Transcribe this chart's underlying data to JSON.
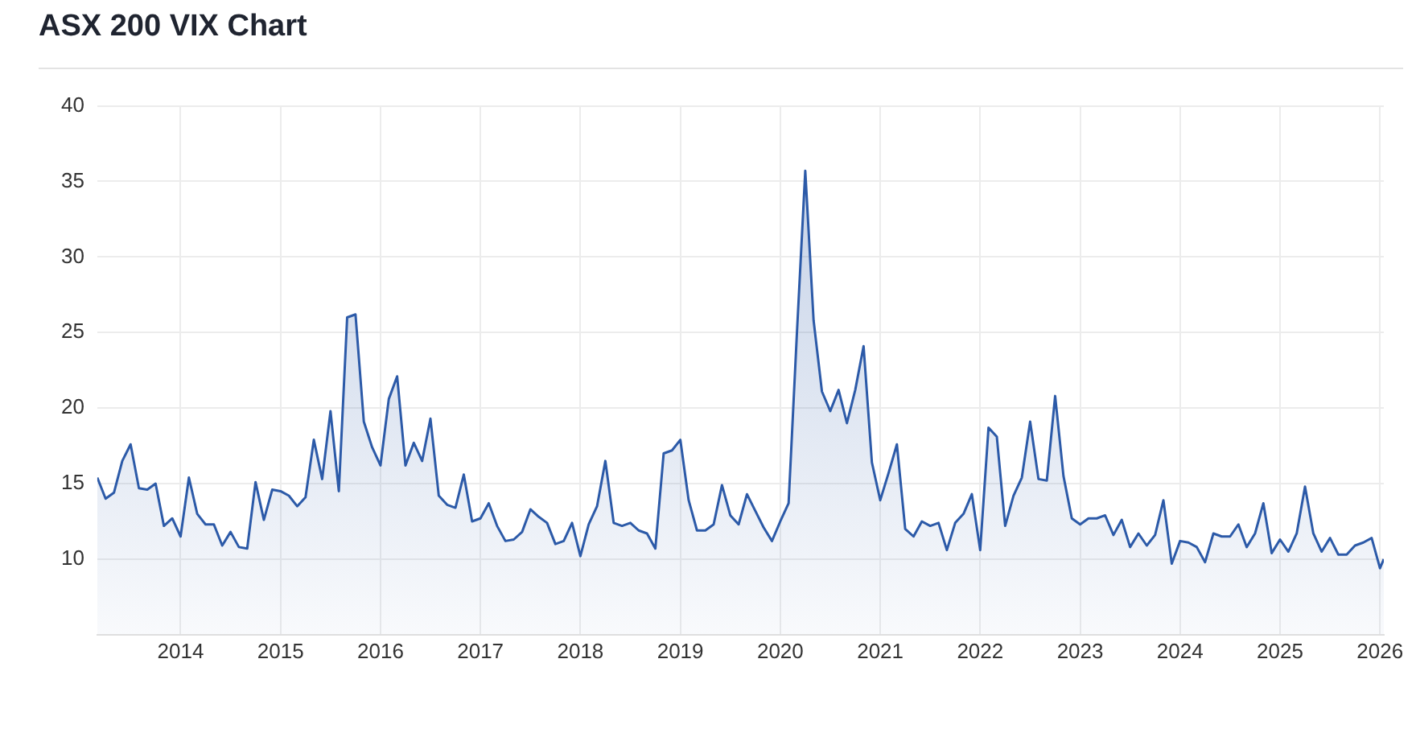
{
  "chart_data": {
    "type": "area",
    "title": "ASX 200 VIX Chart",
    "x": [
      "2013-03",
      "2013-04",
      "2013-05",
      "2013-06",
      "2013-07",
      "2013-08",
      "2013-09",
      "2013-10",
      "2013-11",
      "2013-12",
      "2014-01",
      "2014-02",
      "2014-03",
      "2014-04",
      "2014-05",
      "2014-06",
      "2014-07",
      "2014-08",
      "2014-09",
      "2014-10",
      "2014-11",
      "2014-12",
      "2015-01",
      "2015-02",
      "2015-03",
      "2015-04",
      "2015-05",
      "2015-06",
      "2015-07",
      "2015-08",
      "2015-09",
      "2015-10",
      "2015-11",
      "2015-12",
      "2016-01",
      "2016-02",
      "2016-03",
      "2016-04",
      "2016-05",
      "2016-06",
      "2016-07",
      "2016-08",
      "2016-09",
      "2016-10",
      "2016-11",
      "2016-12",
      "2017-01",
      "2017-02",
      "2017-03",
      "2017-04",
      "2017-05",
      "2017-06",
      "2017-07",
      "2017-08",
      "2017-09",
      "2017-10",
      "2017-11",
      "2017-12",
      "2018-01",
      "2018-02",
      "2018-03",
      "2018-04",
      "2018-05",
      "2018-06",
      "2018-07",
      "2018-08",
      "2018-09",
      "2018-10",
      "2018-11",
      "2018-12",
      "2019-01",
      "2019-02",
      "2019-03",
      "2019-04",
      "2019-05",
      "2019-06",
      "2019-07",
      "2019-08",
      "2019-09",
      "2019-10",
      "2019-11",
      "2019-12",
      "2020-01",
      "2020-02",
      "2020-03",
      "2020-04",
      "2020-05",
      "2020-06",
      "2020-07",
      "2020-08",
      "2020-09",
      "2020-10",
      "2020-11",
      "2020-12",
      "2021-01",
      "2021-02",
      "2021-03",
      "2021-04",
      "2021-05",
      "2021-06",
      "2021-07",
      "2021-08",
      "2021-09",
      "2021-10",
      "2021-11",
      "2021-12",
      "2022-01",
      "2022-02",
      "2022-03",
      "2022-04",
      "2022-05",
      "2022-06",
      "2022-07",
      "2022-08",
      "2022-09",
      "2022-10",
      "2022-11",
      "2022-12",
      "2023-01",
      "2023-02",
      "2023-03",
      "2023-04",
      "2023-05",
      "2023-06",
      "2023-07",
      "2023-08",
      "2023-09",
      "2023-10",
      "2023-11",
      "2023-12",
      "2024-01",
      "2024-02",
      "2024-03",
      "2024-04",
      "2024-05",
      "2024-06",
      "2024-07",
      "2024-08",
      "2024-09",
      "2024-10",
      "2024-11",
      "2024-12",
      "2025-01",
      "2025-02",
      "2025-03",
      "2025-04",
      "2025-05",
      "2025-06",
      "2025-07",
      "2025-08",
      "2025-09",
      "2025-10",
      "2025-11",
      "2025-12",
      "2026-01",
      "2026-01-15"
    ],
    "series": [
      {
        "color": "#2c5aa8",
        "values": [
          15.4,
          14.0,
          14.4,
          16.5,
          17.6,
          14.7,
          14.6,
          15.0,
          12.2,
          12.7,
          11.5,
          15.4,
          13.0,
          12.3,
          12.3,
          10.9,
          11.8,
          10.8,
          10.7,
          15.1,
          12.6,
          14.6,
          14.5,
          14.2,
          13.5,
          14.1,
          17.9,
          15.3,
          19.8,
          14.5,
          26.0,
          26.2,
          19.1,
          17.4,
          16.2,
          20.6,
          22.1,
          16.2,
          17.7,
          16.5,
          19.3,
          14.2,
          13.6,
          13.4,
          15.6,
          12.5,
          12.7,
          13.7,
          12.2,
          11.2,
          11.3,
          11.8,
          13.3,
          12.8,
          12.4,
          11.0,
          11.2,
          12.4,
          10.2,
          12.3,
          13.5,
          16.5,
          12.4,
          12.2,
          12.4,
          11.9,
          11.7,
          10.7,
          17.0,
          17.2,
          17.9,
          13.9,
          11.9,
          11.9,
          12.3,
          14.9,
          12.9,
          12.3,
          14.3,
          13.2,
          12.1,
          11.2,
          12.5,
          13.7,
          25.0,
          35.7,
          25.8,
          21.1,
          19.8,
          21.2,
          19.0,
          21.2,
          24.1,
          16.4,
          13.9,
          15.7,
          17.6,
          12.0,
          11.5,
          12.5,
          12.2,
          12.4,
          10.6,
          12.4,
          13.0,
          14.3,
          10.6,
          18.7,
          18.1,
          12.2,
          14.2,
          15.4,
          19.1,
          15.3,
          15.2,
          20.8,
          15.5,
          12.7,
          12.3,
          12.7,
          12.7,
          12.9,
          11.6,
          12.6,
          10.8,
          11.7,
          10.9,
          11.6,
          13.9,
          9.7,
          11.2,
          11.1,
          10.8,
          9.8,
          11.7,
          11.5,
          11.5,
          12.3,
          10.8,
          11.7,
          13.7,
          10.4,
          11.3,
          10.5,
          11.7,
          14.8,
          11.7,
          10.5,
          11.4,
          10.3,
          10.3,
          10.9,
          11.1,
          11.4,
          9.4,
          10.0
        ]
      }
    ],
    "xlim": [
      "2013-03",
      "2026-01-15"
    ],
    "xticks": [
      "2014",
      "2015",
      "2016",
      "2017",
      "2018",
      "2019",
      "2020",
      "2021",
      "2022",
      "2023",
      "2024",
      "2025",
      "2026"
    ],
    "ylim": [
      5,
      40
    ],
    "yticks": [
      10,
      15,
      20,
      25,
      30,
      35,
      40
    ],
    "grid": true,
    "marker": "none",
    "line_style": "solid"
  }
}
